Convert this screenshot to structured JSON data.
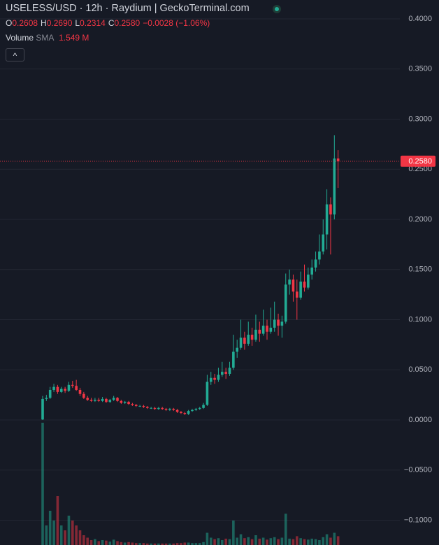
{
  "chart_data": {
    "type": "candlestick",
    "title": "USELESS/USD · 12h · Raydium | GeckoTerminal.com",
    "ohlc_legend": [
      {
        "key": "O",
        "text": "0.2608"
      },
      {
        "key": "H",
        "text": "0.2690"
      },
      {
        "key": "L",
        "text": "0.2314"
      },
      {
        "key": "C",
        "text": "0.2580"
      }
    ],
    "change_text": "−0.0028 (−1.06%)",
    "volume_legend": {
      "name": "Volume",
      "indicator": "SMA",
      "value_text": "1.549 M"
    },
    "collapse_button": "^",
    "up_color": "#22ab94",
    "down_color": "#f23645",
    "ylim": [
      -0.1247,
      0.4188
    ],
    "yticks": [
      {
        "value": 0.4,
        "label": "0.4000"
      },
      {
        "value": 0.35,
        "label": "0.3500"
      },
      {
        "value": 0.3,
        "label": "0.3000"
      },
      {
        "value": 0.25,
        "label": "0.2500"
      },
      {
        "value": 0.2,
        "label": "0.2000"
      },
      {
        "value": 0.15,
        "label": "0.1500"
      },
      {
        "value": 0.1,
        "label": "0.1000"
      },
      {
        "value": 0.05,
        "label": "0.0500"
      },
      {
        "value": 0,
        "label": "0.0000"
      },
      {
        "value": -0.05,
        "label": "−0.0500"
      },
      {
        "value": -0.1,
        "label": "−0.1000"
      }
    ],
    "grid": true,
    "last_price": {
      "value": 0.258,
      "label": "0.2580"
    },
    "candles": {
      "open": [
        0.0005,
        0.021,
        0.022,
        0.03,
        0.033,
        0.028,
        0.031,
        0.029,
        0.035,
        0.034,
        0.03,
        0.026,
        0.022,
        0.02,
        0.019,
        0.02,
        0.019,
        0.021,
        0.018,
        0.02,
        0.022,
        0.019,
        0.017,
        0.018,
        0.016,
        0.015,
        0.014,
        0.014,
        0.013,
        0.012,
        0.012,
        0.011,
        0.012,
        0.011,
        0.01,
        0.011,
        0.01,
        0.008,
        0.007,
        0.006,
        0.009,
        0.01,
        0.011,
        0.012,
        0.015,
        0.038,
        0.042,
        0.04,
        0.045,
        0.048,
        0.046,
        0.052,
        0.068,
        0.072,
        0.082,
        0.076,
        0.085,
        0.08,
        0.09,
        0.086,
        0.094,
        0.088,
        0.092,
        0.1,
        0.094,
        0.098,
        0.135,
        0.14,
        0.128,
        0.122,
        0.138,
        0.132,
        0.145,
        0.152,
        0.16,
        0.168,
        0.185,
        0.215,
        0.205,
        0.2608
      ],
      "high": [
        0.024,
        0.025,
        0.033,
        0.036,
        0.035,
        0.033,
        0.033,
        0.038,
        0.039,
        0.04,
        0.032,
        0.028,
        0.024,
        0.022,
        0.022,
        0.022,
        0.023,
        0.022,
        0.021,
        0.024,
        0.023,
        0.02,
        0.019,
        0.019,
        0.017,
        0.016,
        0.015,
        0.015,
        0.014,
        0.013,
        0.013,
        0.013,
        0.013,
        0.012,
        0.012,
        0.012,
        0.011,
        0.009,
        0.008,
        0.01,
        0.011,
        0.012,
        0.013,
        0.017,
        0.045,
        0.048,
        0.046,
        0.052,
        0.058,
        0.052,
        0.058,
        0.085,
        0.08,
        0.1,
        0.088,
        0.098,
        0.092,
        0.105,
        0.098,
        0.11,
        0.1,
        0.112,
        0.118,
        0.106,
        0.104,
        0.146,
        0.15,
        0.145,
        0.14,
        0.148,
        0.155,
        0.152,
        0.16,
        0.168,
        0.185,
        0.2,
        0.23,
        0.222,
        0.284,
        0.269
      ],
      "low": [
        0,
        0.019,
        0.021,
        0.028,
        0.026,
        0.027,
        0.027,
        0.028,
        0.032,
        0.029,
        0.024,
        0.021,
        0.019,
        0.018,
        0.018,
        0.018,
        0.018,
        0.017,
        0.017,
        0.019,
        0.018,
        0.016,
        0.016,
        0.015,
        0.014,
        0.013,
        0.013,
        0.012,
        0.011,
        0.011,
        0.01,
        0.01,
        0.01,
        0.009,
        0.009,
        0.009,
        0.007,
        0.006,
        0.005,
        0.005,
        0.008,
        0.009,
        0.01,
        0.011,
        0.014,
        0.035,
        0.036,
        0.038,
        0.043,
        0.041,
        0.044,
        0.05,
        0.062,
        0.07,
        0.07,
        0.074,
        0.074,
        0.078,
        0.078,
        0.084,
        0.08,
        0.086,
        0.088,
        0.084,
        0.082,
        0.096,
        0.125,
        0.118,
        0.1,
        0.12,
        0.128,
        0.13,
        0.14,
        0.148,
        0.155,
        0.165,
        0.17,
        0.165,
        0.2,
        0.2314
      ],
      "close": [
        0.021,
        0.022,
        0.03,
        0.033,
        0.028,
        0.031,
        0.029,
        0.035,
        0.034,
        0.03,
        0.026,
        0.022,
        0.02,
        0.019,
        0.02,
        0.019,
        0.021,
        0.018,
        0.02,
        0.022,
        0.019,
        0.017,
        0.018,
        0.016,
        0.015,
        0.014,
        0.014,
        0.013,
        0.012,
        0.012,
        0.011,
        0.012,
        0.011,
        0.01,
        0.011,
        0.01,
        0.008,
        0.007,
        0.006,
        0.009,
        0.01,
        0.011,
        0.012,
        0.015,
        0.038,
        0.042,
        0.04,
        0.045,
        0.048,
        0.046,
        0.052,
        0.068,
        0.072,
        0.082,
        0.076,
        0.085,
        0.08,
        0.09,
        0.086,
        0.094,
        0.088,
        0.092,
        0.1,
        0.094,
        0.098,
        0.135,
        0.14,
        0.128,
        0.122,
        0.138,
        0.132,
        0.145,
        0.152,
        0.16,
        0.168,
        0.185,
        0.215,
        0.205,
        0.2608,
        0.258
      ]
    },
    "volume": [
      25,
      4,
      7,
      5,
      10,
      4,
      3,
      6,
      5,
      4,
      3,
      2,
      1.5,
      1,
      1.2,
      0.8,
      1,
      0.9,
      0.7,
      1.1,
      0.8,
      0.6,
      0.5,
      0.6,
      0.5,
      0.4,
      0.4,
      0.4,
      0.3,
      0.3,
      0.3,
      0.3,
      0.3,
      0.3,
      0.3,
      0.3,
      0.4,
      0.4,
      0.5,
      0.5,
      0.4,
      0.4,
      0.4,
      0.6,
      2.5,
      1.5,
      1.2,
      1.4,
      1,
      1.3,
      1.2,
      5,
      1.5,
      2.2,
      1.4,
      1.6,
      1.2,
      2,
      1.3,
      1.5,
      1.1,
      1.4,
      1.6,
      1.2,
      1.5,
      6.4,
      1.3,
      1.2,
      1.8,
      1.4,
      1.2,
      1.1,
      1.3,
      1.2,
      1,
      1.6,
      2.2,
      1.5,
      2.5,
      1.8
    ]
  }
}
